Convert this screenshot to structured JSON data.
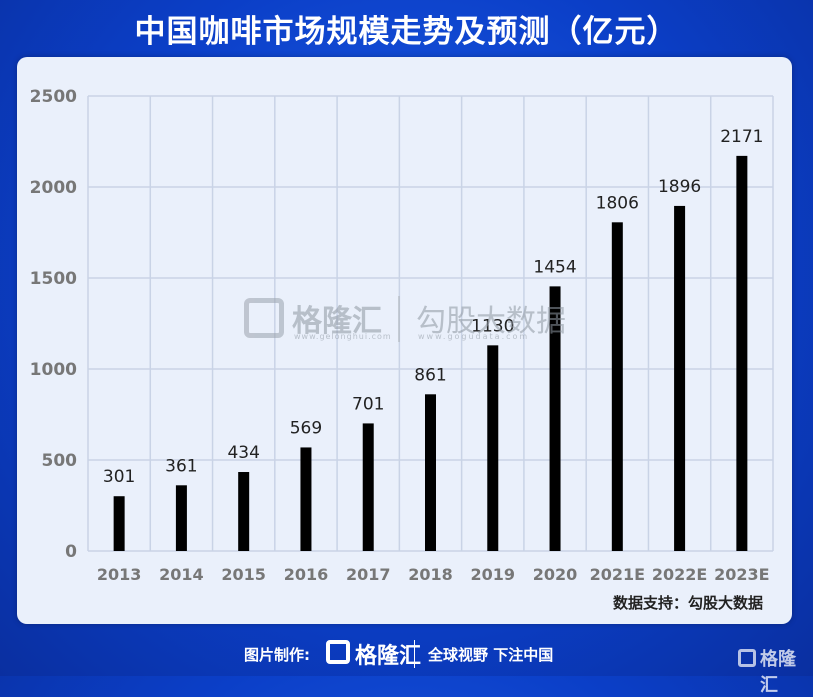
{
  "title": "中国咖啡市场规模走势及预测（亿元）",
  "source": "数据支持：勾股大数据",
  "watermark": {
    "brand": "格隆汇",
    "brand_url": "www.gelonghui.com",
    "data_brand": "勾股大数据",
    "data_url": "www.gogudata.com"
  },
  "footer": {
    "label": "图片制作:",
    "brand": "格隆汇",
    "slogan": "全球视野 下注中国",
    "corner_brand": "格隆汇"
  },
  "colors": {
    "bar": "#000000",
    "background": "#0b3fc8",
    "card": "#eaf0fb",
    "grid": "#c9d3e6"
  },
  "chart_data": {
    "type": "bar",
    "categories": [
      "2013",
      "2014",
      "2015",
      "2016",
      "2017",
      "2018",
      "2019",
      "2020",
      "2021E",
      "2022E",
      "2023E"
    ],
    "values": [
      301,
      361,
      434,
      569,
      701,
      861,
      1130,
      1454,
      1806,
      1896,
      2171
    ],
    "data_labels": [
      "301",
      "361",
      "434",
      "569",
      "701",
      "861",
      "1130",
      "1454",
      "1806",
      "1896",
      "2171"
    ],
    "ylim": [
      0,
      2500
    ],
    "yticks": [
      0,
      500,
      1000,
      1500,
      2000,
      2500
    ],
    "ytick_labels": [
      "0",
      "500",
      "1000",
      "1500",
      "2000",
      "2500"
    ],
    "grid": true,
    "legend": "none"
  }
}
